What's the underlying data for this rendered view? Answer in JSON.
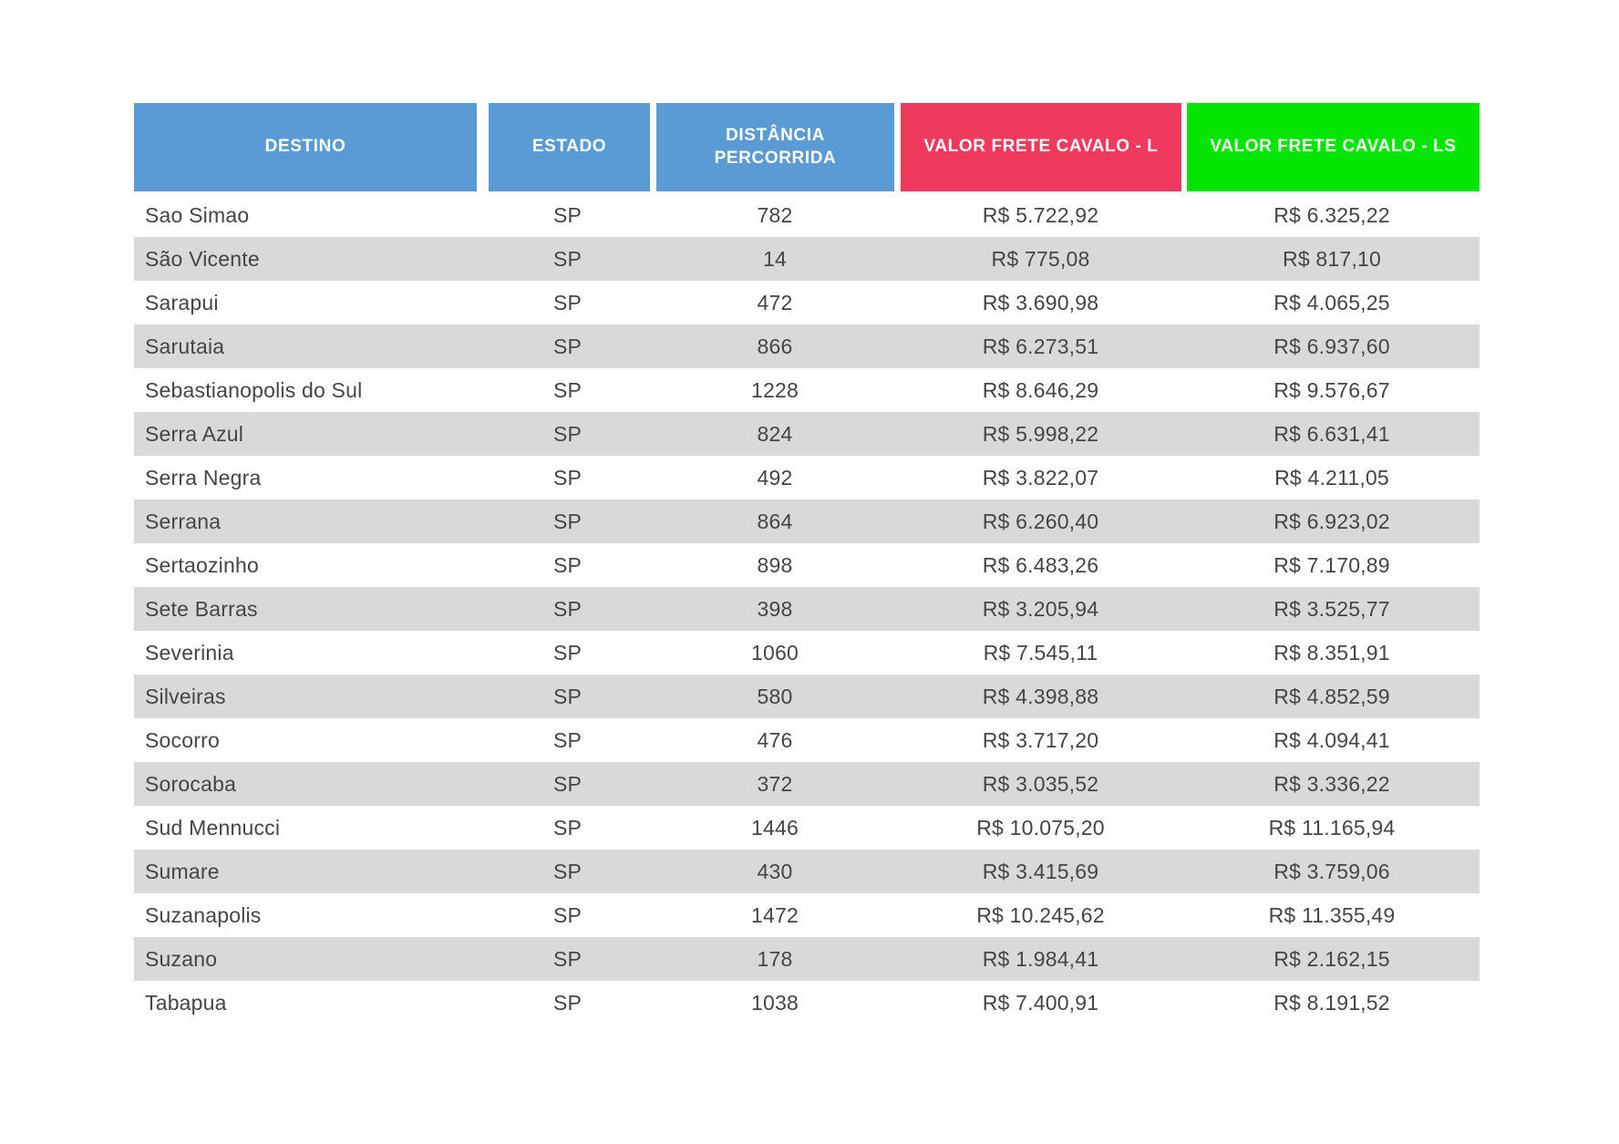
{
  "theme": {
    "header_blue": "#5b9bd5",
    "header_red": "#ef3a5d",
    "header_green": "#04e504",
    "stripe_gray": "#d9d9d9",
    "text_color": "#454545",
    "header_text_color": "#ffffff",
    "background": "#ffffff"
  },
  "table": {
    "columns": [
      {
        "key": "destino",
        "label": "DESTINO",
        "color": "#5b9bd5"
      },
      {
        "key": "estado",
        "label": "ESTADO",
        "color": "#5b9bd5"
      },
      {
        "key": "distancia",
        "label": "DISTÂNCIA PERCORRIDA",
        "color": "#5b9bd5"
      },
      {
        "key": "valor_l",
        "label": "VALOR FRETE CAVALO - L",
        "color": "#ef3a5d"
      },
      {
        "key": "valor_ls",
        "label": "VALOR FRETE CAVALO - LS",
        "color": "#04e504"
      }
    ],
    "rows": [
      {
        "destino": "Sao Simao",
        "estado": "SP",
        "distancia": 782,
        "valor_l": "R$ 5.722,92",
        "valor_ls": "R$ 6.325,22"
      },
      {
        "destino": "São Vicente",
        "estado": "SP",
        "distancia": 14,
        "valor_l": "R$ 775,08",
        "valor_ls": "R$ 817,10"
      },
      {
        "destino": "Sarapui",
        "estado": "SP",
        "distancia": 472,
        "valor_l": "R$ 3.690,98",
        "valor_ls": "R$ 4.065,25"
      },
      {
        "destino": "Sarutaia",
        "estado": "SP",
        "distancia": 866,
        "valor_l": "R$ 6.273,51",
        "valor_ls": "R$ 6.937,60"
      },
      {
        "destino": "Sebastianopolis do Sul",
        "estado": "SP",
        "distancia": 1228,
        "valor_l": "R$ 8.646,29",
        "valor_ls": "R$ 9.576,67"
      },
      {
        "destino": "Serra Azul",
        "estado": "SP",
        "distancia": 824,
        "valor_l": "R$ 5.998,22",
        "valor_ls": "R$ 6.631,41"
      },
      {
        "destino": "Serra Negra",
        "estado": "SP",
        "distancia": 492,
        "valor_l": "R$ 3.822,07",
        "valor_ls": "R$ 4.211,05"
      },
      {
        "destino": "Serrana",
        "estado": "SP",
        "distancia": 864,
        "valor_l": "R$ 6.260,40",
        "valor_ls": "R$ 6.923,02"
      },
      {
        "destino": "Sertaozinho",
        "estado": "SP",
        "distancia": 898,
        "valor_l": "R$ 6.483,26",
        "valor_ls": "R$ 7.170,89"
      },
      {
        "destino": "Sete Barras",
        "estado": "SP",
        "distancia": 398,
        "valor_l": "R$ 3.205,94",
        "valor_ls": "R$ 3.525,77"
      },
      {
        "destino": "Severinia",
        "estado": "SP",
        "distancia": 1060,
        "valor_l": "R$ 7.545,11",
        "valor_ls": "R$ 8.351,91"
      },
      {
        "destino": "Silveiras",
        "estado": "SP",
        "distancia": 580,
        "valor_l": "R$ 4.398,88",
        "valor_ls": "R$ 4.852,59"
      },
      {
        "destino": "Socorro",
        "estado": "SP",
        "distancia": 476,
        "valor_l": "R$ 3.717,20",
        "valor_ls": "R$ 4.094,41"
      },
      {
        "destino": "Sorocaba",
        "estado": "SP",
        "distancia": 372,
        "valor_l": "R$ 3.035,52",
        "valor_ls": "R$ 3.336,22"
      },
      {
        "destino": "Sud Mennucci",
        "estado": "SP",
        "distancia": 1446,
        "valor_l": "R$ 10.075,20",
        "valor_ls": "R$ 11.165,94"
      },
      {
        "destino": "Sumare",
        "estado": "SP",
        "distancia": 430,
        "valor_l": "R$ 3.415,69",
        "valor_ls": "R$ 3.759,06"
      },
      {
        "destino": "Suzanapolis",
        "estado": "SP",
        "distancia": 1472,
        "valor_l": "R$ 10.245,62",
        "valor_ls": "R$ 11.355,49"
      },
      {
        "destino": "Suzano",
        "estado": "SP",
        "distancia": 178,
        "valor_l": "R$ 1.984,41",
        "valor_ls": "R$ 2.162,15"
      },
      {
        "destino": "Tabapua",
        "estado": "SP",
        "distancia": 1038,
        "valor_l": "R$ 7.400,91",
        "valor_ls": "R$ 8.191,52"
      }
    ]
  }
}
